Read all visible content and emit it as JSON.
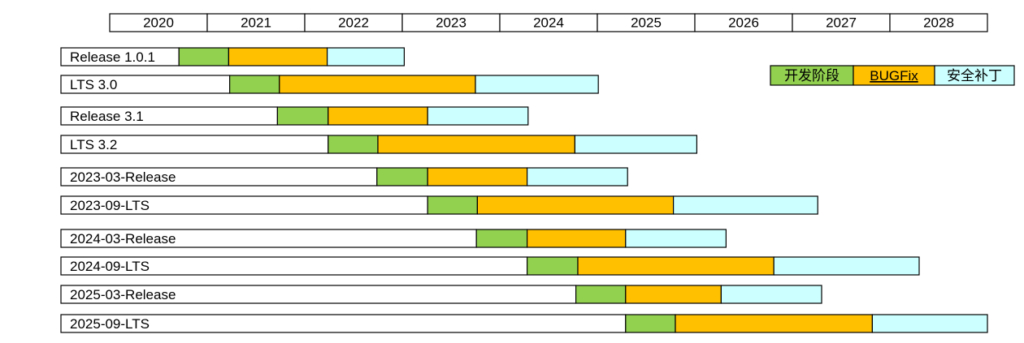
{
  "chart_data": {
    "type": "gantt",
    "x_unit": "year",
    "years": [
      "2020",
      "2021",
      "2022",
      "2023",
      "2024",
      "2025",
      "2026",
      "2027",
      "2028"
    ],
    "x_range": [
      2019.5,
      2029.0
    ],
    "phases": [
      {
        "key": "dev",
        "name": "开发阶段",
        "color": "#92d050"
      },
      {
        "key": "bugfix",
        "name": "BUGFix",
        "color": "#ffc000"
      },
      {
        "key": "security",
        "name": "安全补丁",
        "color": "#ccffff"
      }
    ],
    "releases": [
      {
        "label": "Release 1.0.1",
        "start": 2019.5,
        "dev_start": 2020.71,
        "bugfix_start": 2021.22,
        "security_start": 2022.23,
        "end": 2023.02
      },
      {
        "label": "LTS 3.0",
        "start": 2019.5,
        "dev_start": 2021.23,
        "bugfix_start": 2021.74,
        "security_start": 2023.75,
        "end": 2025.01
      },
      {
        "label": "Release 3.1",
        "start": 2019.5,
        "dev_start": 2021.72,
        "bugfix_start": 2022.24,
        "security_start": 2023.26,
        "end": 2024.29
      },
      {
        "label": "LTS 3.2",
        "start": 2019.5,
        "dev_start": 2022.24,
        "bugfix_start": 2022.75,
        "security_start": 2024.77,
        "end": 2026.02
      },
      {
        "label": "2023-03-Release",
        "start": 2019.5,
        "dev_start": 2022.74,
        "bugfix_start": 2023.26,
        "security_start": 2024.28,
        "end": 2025.31
      },
      {
        "label": "2023-09-LTS",
        "start": 2019.5,
        "dev_start": 2023.26,
        "bugfix_start": 2023.77,
        "security_start": 2025.78,
        "end": 2027.26
      },
      {
        "label": "2024-03-Release",
        "start": 2019.5,
        "dev_start": 2023.76,
        "bugfix_start": 2024.28,
        "security_start": 2025.29,
        "end": 2026.32
      },
      {
        "label": "2024-09-LTS",
        "start": 2019.5,
        "dev_start": 2024.28,
        "bugfix_start": 2024.8,
        "security_start": 2026.81,
        "end": 2028.3
      },
      {
        "label": "2025-03-Release",
        "start": 2019.5,
        "dev_start": 2024.78,
        "bugfix_start": 2025.29,
        "security_start": 2026.27,
        "end": 2027.3
      },
      {
        "label": "2025-09-LTS",
        "start": 2019.5,
        "dev_start": 2025.29,
        "bugfix_start": 2025.8,
        "security_start": 2027.82,
        "end": 2029.0
      }
    ]
  }
}
